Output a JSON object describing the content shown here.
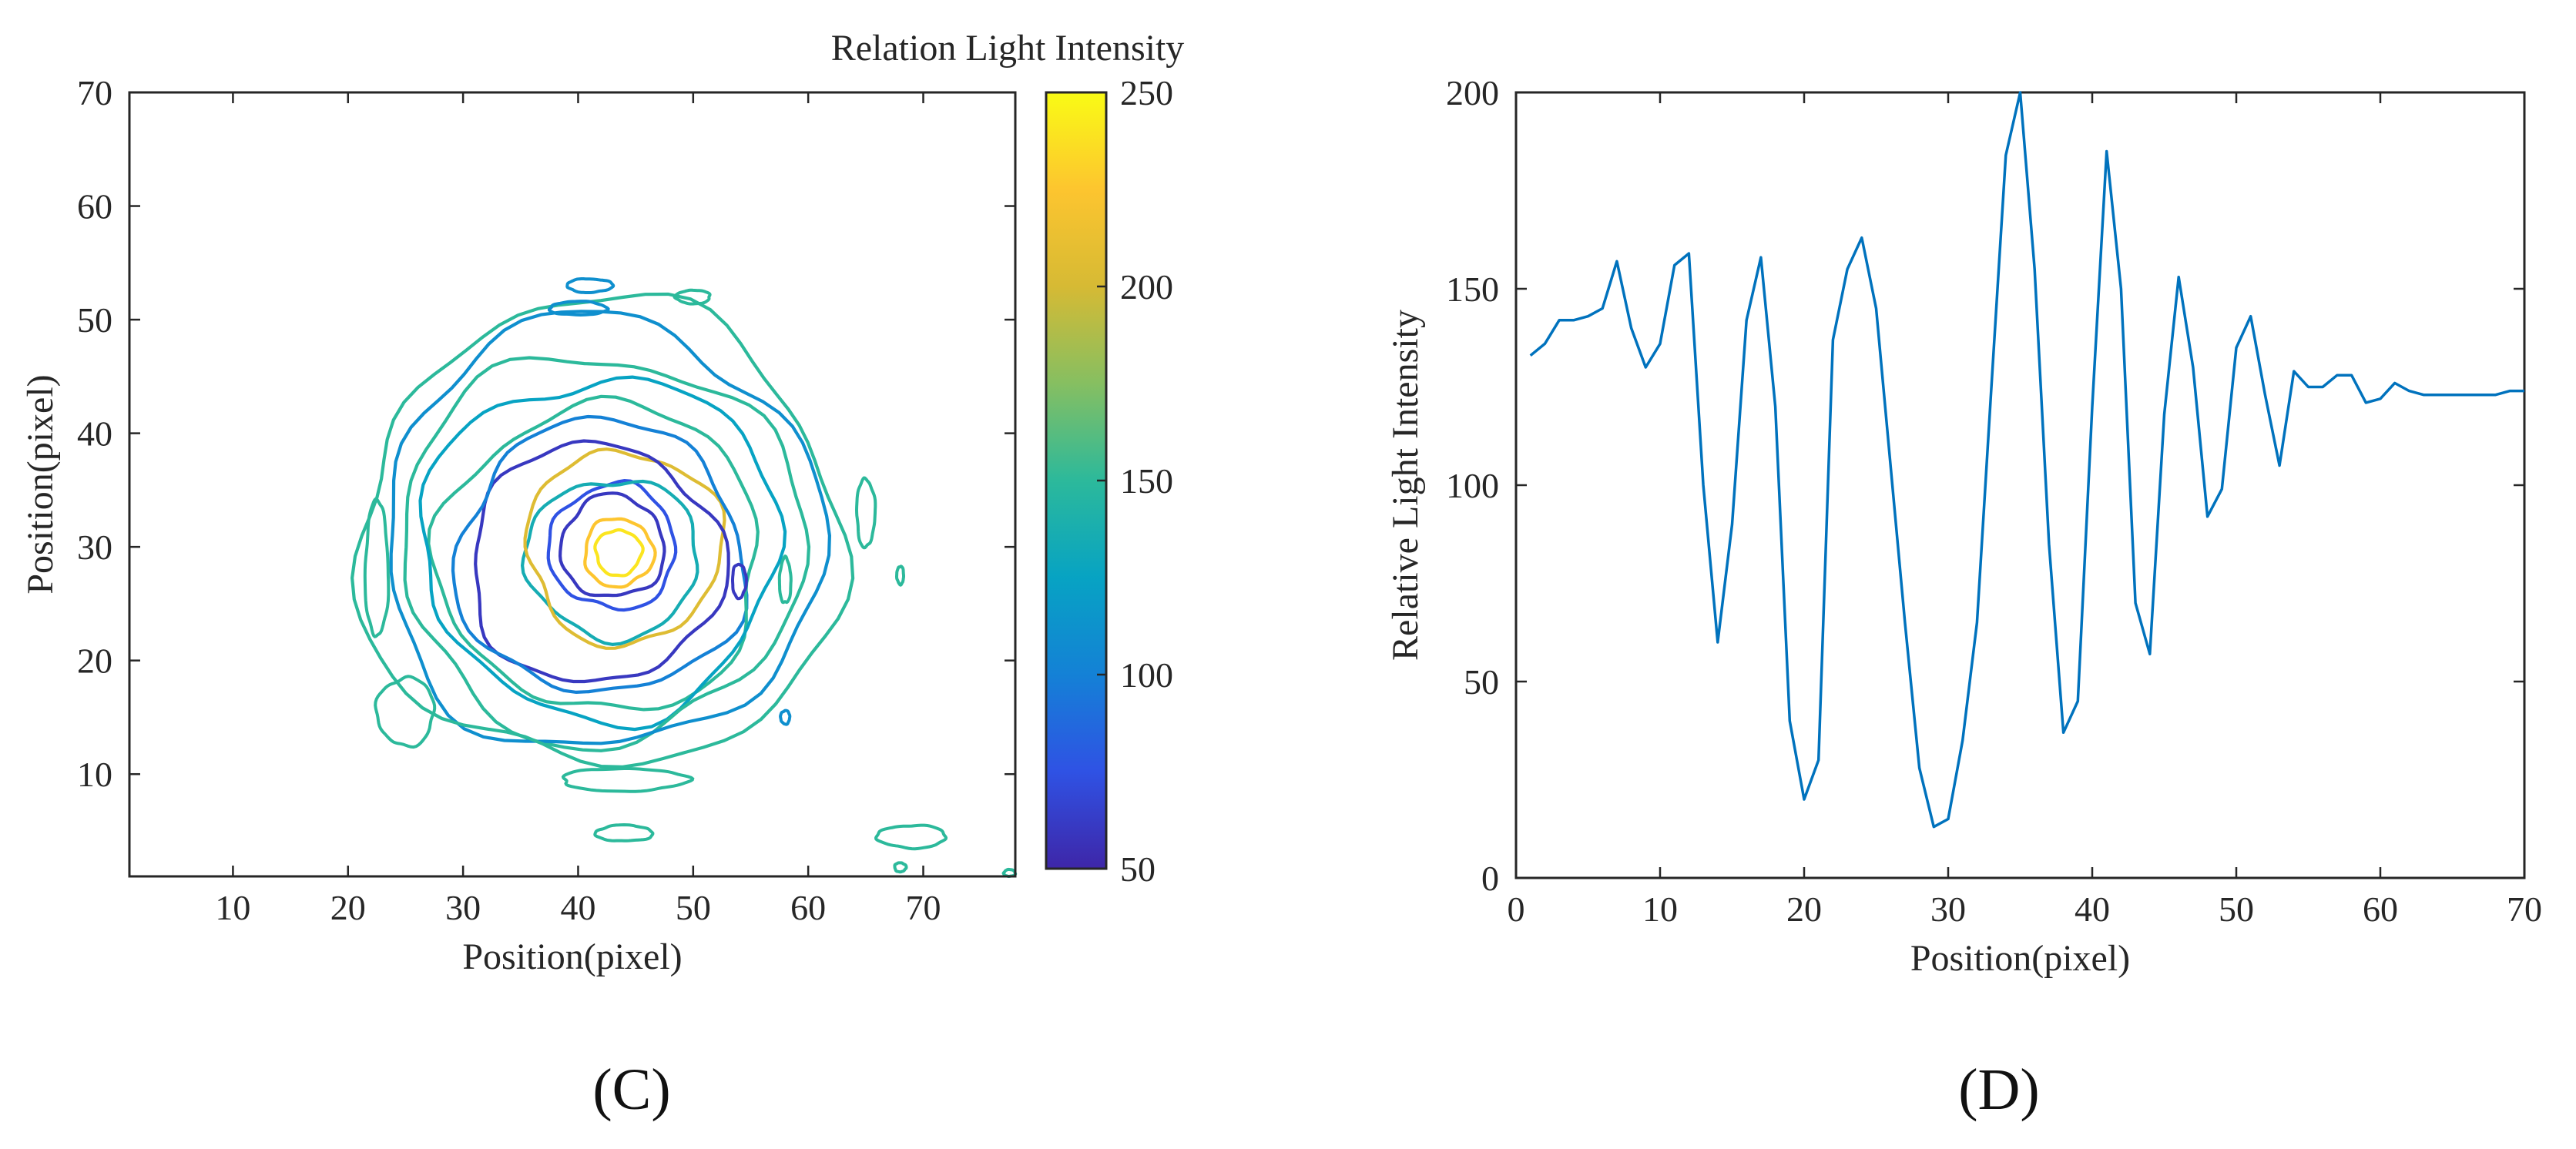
{
  "chart_data": [
    {
      "type": "contour",
      "panel_label": "(C)",
      "xlabel": "Position(pixel)",
      "ylabel": "Position(pixel)",
      "xlim": [
        1,
        78
      ],
      "ylim": [
        1,
        70
      ],
      "xticks": [
        10,
        20,
        30,
        40,
        50,
        60,
        70
      ],
      "yticks": [
        10,
        20,
        30,
        40,
        50,
        60,
        70
      ],
      "center": [
        43,
        30
      ],
      "colorbar": {
        "title": "Relation Light Intensity",
        "range": [
          50,
          250
        ],
        "ticks": [
          50,
          100,
          150,
          200,
          250
        ],
        "colormap": [
          "#3e26a8",
          "#2f52e4",
          "#1481d6",
          "#07a3c3",
          "#2cb99b",
          "#86bf61",
          "#d6ba34",
          "#fdc52f",
          "#f9fb15"
        ]
      },
      "contours": [
        {
          "level": 240,
          "center": [
            43.5,
            29.5
          ],
          "rx": 2,
          "ry": 2
        },
        {
          "level": 225,
          "center": [
            43.5,
            29.5
          ],
          "rx": 3,
          "ry": 3
        },
        {
          "level": 60,
          "center": [
            43,
            30
          ],
          "rx": 4.5,
          "ry": 4.5
        },
        {
          "level": 75,
          "center": [
            43,
            30
          ],
          "rx": 5.5,
          "ry": 5.5
        },
        {
          "level": 135,
          "center": [
            43,
            29
          ],
          "rx": 7.5,
          "ry": 7
        },
        {
          "level": 205,
          "center": [
            44,
            30
          ],
          "rx": 8.5,
          "ry": 8.5
        },
        {
          "level": 60,
          "center": [
            41.5,
            28.5
          ],
          "rx": 11,
          "ry": 10.5
        },
        {
          "level": 100,
          "center": [
            42,
            29
          ],
          "rx": 12.5,
          "ry": 12
        },
        {
          "level": 150,
          "center": [
            42,
            29
          ],
          "rx": 14,
          "ry": 13.5
        },
        {
          "level": 125,
          "center": [
            42,
            30
          ],
          "rx": 15.5,
          "ry": 15
        },
        {
          "level": 150,
          "center": [
            42,
            30
          ],
          "rx": 17.5,
          "ry": 17
        },
        {
          "level": 110,
          "center": [
            42,
            31
          ],
          "rx": 19,
          "ry": 19
        },
        {
          "level": 150,
          "center": [
            42,
            31
          ],
          "rx": 21,
          "ry": 20.5
        }
      ],
      "blobs": [
        {
          "level": 150,
          "center": [
            44,
            9.5
          ],
          "rx": 5.5,
          "ry": 1
        },
        {
          "level": 150,
          "center": [
            44,
            4.8
          ],
          "rx": 2.5,
          "ry": 0.7
        },
        {
          "level": 150,
          "center": [
            69,
            4.5
          ],
          "rx": 3,
          "ry": 1
        },
        {
          "level": 150,
          "center": [
            65,
            33
          ],
          "rx": 0.8,
          "ry": 3
        },
        {
          "level": 150,
          "center": [
            22.5,
            28
          ],
          "rx": 1,
          "ry": 6
        },
        {
          "level": 150,
          "center": [
            25,
            15.5
          ],
          "rx": 2.5,
          "ry": 3
        },
        {
          "level": 110,
          "center": [
            41,
            53
          ],
          "rx": 2,
          "ry": 0.6
        },
        {
          "level": 110,
          "center": [
            40,
            51
          ],
          "rx": 2.5,
          "ry": 0.6
        },
        {
          "level": 150,
          "center": [
            50,
            52
          ],
          "rx": 1.5,
          "ry": 0.6
        },
        {
          "level": 60,
          "center": [
            54,
            27
          ],
          "rx": 0.6,
          "ry": 1.5
        },
        {
          "level": 150,
          "center": [
            58,
            27
          ],
          "rx": 0.5,
          "ry": 2
        },
        {
          "level": 150,
          "center": [
            68,
            27.5
          ],
          "rx": 0.3,
          "ry": 0.8
        },
        {
          "level": 150,
          "center": [
            68,
            1.8
          ],
          "rx": 0.5,
          "ry": 0.4
        },
        {
          "level": 150,
          "center": [
            77.5,
            1.3
          ],
          "rx": 0.5,
          "ry": 0.3
        },
        {
          "level": 110,
          "center": [
            58,
            15
          ],
          "rx": 0.4,
          "ry": 0.6
        }
      ]
    },
    {
      "type": "line",
      "panel_label": "(D)",
      "xlabel": "Position(pixel)",
      "ylabel": "Relative Light Intensity",
      "xlim": [
        0,
        70
      ],
      "ylim": [
        0,
        200
      ],
      "xticks": [
        0,
        10,
        20,
        30,
        40,
        50,
        60,
        70
      ],
      "yticks": [
        0,
        50,
        100,
        150,
        200
      ],
      "color": "#0072bd",
      "x": [
        1,
        2,
        3,
        4,
        5,
        6,
        7,
        8,
        9,
        10,
        11,
        12,
        13,
        14,
        15,
        16,
        17,
        18,
        19,
        20,
        21,
        22,
        23,
        24,
        25,
        26,
        27,
        28,
        29,
        30,
        31,
        32,
        33,
        34,
        35,
        36,
        37,
        38,
        39,
        40,
        41,
        42,
        43,
        44,
        45,
        46,
        47,
        48,
        49,
        50,
        51,
        52,
        53,
        54,
        55,
        56,
        57,
        58,
        59,
        60,
        61,
        62,
        63,
        64,
        65,
        66,
        67,
        68,
        69,
        70
      ],
      "y": [
        133,
        136,
        142,
        142,
        143,
        145,
        157,
        140,
        130,
        136,
        156,
        159,
        100,
        60,
        90,
        142,
        158,
        120,
        40,
        20,
        30,
        137,
        155,
        163,
        145,
        105,
        65,
        28,
        13,
        15,
        35,
        65,
        125,
        184,
        200,
        155,
        85,
        37,
        45,
        120,
        185,
        150,
        70,
        57,
        118,
        153,
        130,
        92,
        99,
        135,
        143,
        123,
        105,
        129,
        125,
        125,
        128,
        128,
        121,
        122,
        126,
        124,
        123,
        123,
        123,
        123,
        123,
        123,
        124,
        124
      ]
    }
  ]
}
